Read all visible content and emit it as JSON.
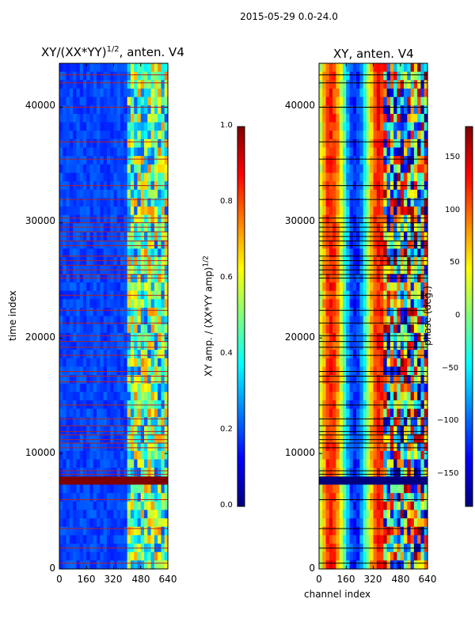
{
  "figure": {
    "suptitle": "2015-05-29 0.0-24.0"
  },
  "colors": {
    "jet": [
      "#00007f",
      "#0000ff",
      "#007fff",
      "#00ffff",
      "#7fff7f",
      "#ffff00",
      "#ff7f00",
      "#ff0000",
      "#7f0000"
    ],
    "flag_amp": "#b22222",
    "flag_phase": "#000000"
  },
  "chart_data": [
    {
      "type": "heatmap",
      "title": "XY/(XX*YY)",
      "title_sup": "1/2",
      "title_suffix": ", anten. V4",
      "xlabel": "",
      "ylabel": "time index",
      "xlim": [
        0,
        640
      ],
      "ylim": [
        0,
        43800
      ],
      "xticks": [
        "0",
        "160",
        "320",
        "480",
        "640"
      ],
      "yticks": [
        "0",
        "10000",
        "20000",
        "30000",
        "40000"
      ],
      "colorbar": {
        "label_main": "XY amp. / (XX*YY amp)",
        "label_sup": "1/2",
        "range": [
          0.0,
          1.0
        ],
        "ticks": [
          "0.0",
          "0.2",
          "0.4",
          "0.6",
          "0.8",
          "1.0"
        ]
      },
      "description_values": {
        "background_level": 0.15,
        "high_activity_channels": [
          400,
          640
        ],
        "saturated_band_time": [
          7300,
          8000
        ]
      }
    },
    {
      "type": "heatmap",
      "title": "XY, anten. V4",
      "xlabel": "channel index",
      "ylabel": "",
      "xlim": [
        0,
        640
      ],
      "ylim": [
        0,
        43800
      ],
      "xticks": [
        "0",
        "160",
        "320",
        "480",
        "640"
      ],
      "yticks": [
        "0",
        "10000",
        "20000",
        "30000",
        "40000"
      ],
      "colorbar": {
        "label_main": "phase (deg.)",
        "range": [
          -180,
          180
        ],
        "ticks": [
          "150",
          "100",
          "50",
          "0",
          "−50",
          "−100",
          "−150"
        ]
      },
      "description_values": {
        "flagged_band_time": [
          7300,
          8000
        ]
      }
    }
  ],
  "flag_rows": [
    500,
    1800,
    3500,
    6000,
    8200,
    8500,
    10500,
    10900,
    11200,
    11600,
    11900,
    12400,
    13000,
    14200,
    16200,
    16700,
    17100,
    18500,
    19200,
    19700,
    20200,
    21300,
    22400,
    23700,
    25200,
    25500,
    25900,
    26300,
    26700,
    27100,
    28000,
    28400,
    28800,
    29200,
    29600,
    30000,
    30400,
    32000,
    33200,
    35500,
    37000,
    40000,
    42100,
    42800
  ]
}
